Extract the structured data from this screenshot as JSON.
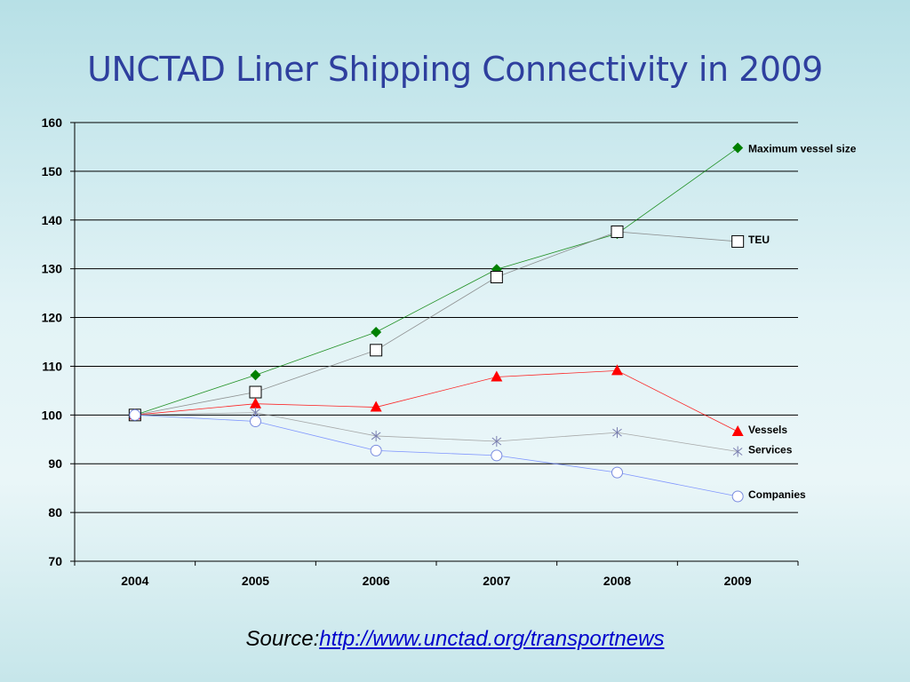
{
  "slide": {
    "title": "UNCTAD Liner Shipping Connectivity in 2009",
    "source_prefix": "Source:",
    "source_link": "http://www.unctad.org/transportnews"
  },
  "chart_data": {
    "type": "line",
    "title": "UNCTAD Liner Shipping Connectivity in 2009",
    "xlabel": "",
    "ylabel": "",
    "categories": [
      "2004",
      "2005",
      "2006",
      "2007",
      "2008",
      "2009"
    ],
    "ylim": [
      70,
      160
    ],
    "yticks": [
      70,
      80,
      90,
      100,
      110,
      120,
      130,
      140,
      150,
      160
    ],
    "grid": "horizontal",
    "legend": "labels at line ends (right)",
    "series": [
      {
        "name": "Maximum vessel size",
        "values": [
          100,
          108.2,
          117,
          129.9,
          137.2,
          154.8
        ],
        "color": "#008000",
        "marker": "diamond"
      },
      {
        "name": "TEU",
        "values": [
          100,
          104.7,
          113.3,
          128.3,
          137.6,
          135.6
        ],
        "color": "#808080",
        "marker": "square"
      },
      {
        "name": "Vessels",
        "values": [
          100,
          102.3,
          101.6,
          107.8,
          109.1,
          96.6
        ],
        "color": "#ff0000",
        "marker": "triangle"
      },
      {
        "name": "Services",
        "values": [
          100,
          100.5,
          95.7,
          94.6,
          96.4,
          92.5
        ],
        "color": "#9a9a9a",
        "marker": "asterisk"
      },
      {
        "name": "Companies",
        "values": [
          100,
          98.7,
          92.7,
          91.7,
          88.2,
          83.3
        ],
        "color": "#6f86ff",
        "marker": "circle"
      }
    ]
  }
}
